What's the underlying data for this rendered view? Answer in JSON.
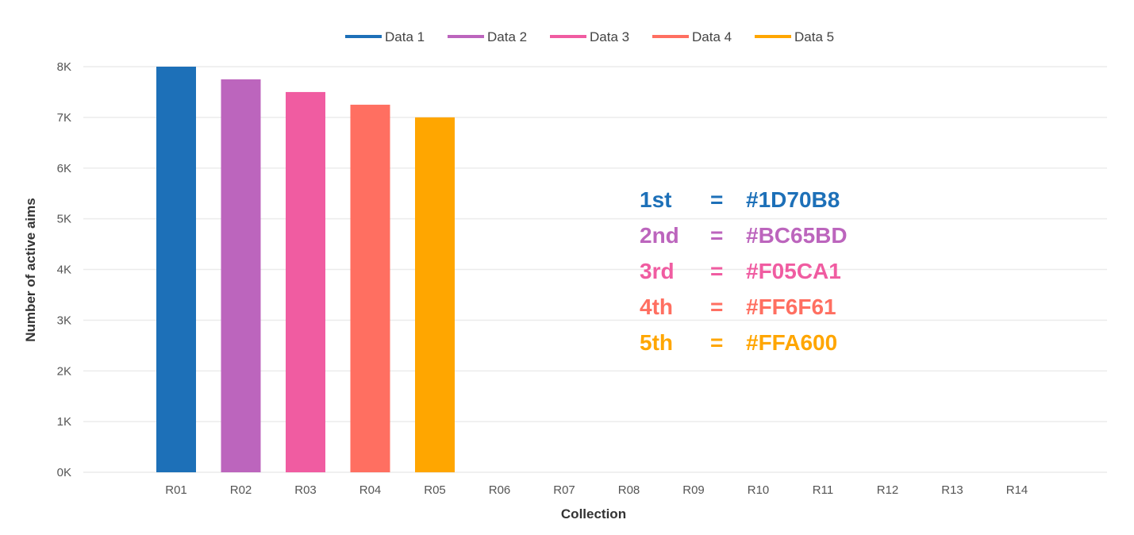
{
  "chart_data": {
    "type": "bar",
    "categories": [
      "R01",
      "R02",
      "R03",
      "R04",
      "R05",
      "R06",
      "R07",
      "R08",
      "R09",
      "R10",
      "R11",
      "R12",
      "R13",
      "R14"
    ],
    "series": [
      {
        "name": "Data 1",
        "color": "#1D70B8",
        "values": [
          8000,
          null,
          null,
          null,
          null,
          null,
          null,
          null,
          null,
          null,
          null,
          null,
          null,
          null
        ]
      },
      {
        "name": "Data 2",
        "color": "#BC65BD",
        "values": [
          null,
          7750,
          null,
          null,
          null,
          null,
          null,
          null,
          null,
          null,
          null,
          null,
          null,
          null
        ]
      },
      {
        "name": "Data 3",
        "color": "#F05CA1",
        "values": [
          null,
          null,
          7500,
          null,
          null,
          null,
          null,
          null,
          null,
          null,
          null,
          null,
          null,
          null
        ]
      },
      {
        "name": "Data 4",
        "color": "#FF6F61",
        "values": [
          null,
          null,
          null,
          7250,
          null,
          null,
          null,
          null,
          null,
          null,
          null,
          null,
          null,
          null
        ]
      },
      {
        "name": "Data 5",
        "color": "#FFA600",
        "values": [
          null,
          null,
          null,
          null,
          7000,
          null,
          null,
          null,
          null,
          null,
          null,
          null,
          null,
          null
        ]
      }
    ],
    "xlabel": "Collection",
    "ylabel": "Number of active aims",
    "ylim": [
      0,
      8000
    ],
    "yticks": [
      {
        "value": 0,
        "label": "0K"
      },
      {
        "value": 1000,
        "label": "1K"
      },
      {
        "value": 2000,
        "label": "2K"
      },
      {
        "value": 3000,
        "label": "3K"
      },
      {
        "value": 4000,
        "label": "4K"
      },
      {
        "value": 5000,
        "label": "5K"
      },
      {
        "value": 6000,
        "label": "6K"
      },
      {
        "value": 7000,
        "label": "7K"
      },
      {
        "value": 8000,
        "label": "8K"
      }
    ],
    "grid": true,
    "legend": "top-center",
    "annotations": [
      {
        "rank": "1st",
        "sep": "=",
        "code": "#1D70B8",
        "color": "#1D70B8"
      },
      {
        "rank": "2nd",
        "sep": "=",
        "code": "#BC65BD",
        "color": "#BC65BD"
      },
      {
        "rank": "3rd",
        "sep": "=",
        "code": "#F05CA1",
        "color": "#F05CA1"
      },
      {
        "rank": "4th",
        "sep": "=",
        "code": "#FF6F61",
        "color": "#FF6F61"
      },
      {
        "rank": "5th",
        "sep": "=",
        "code": "#FFA600",
        "color": "#FFA600"
      }
    ]
  }
}
